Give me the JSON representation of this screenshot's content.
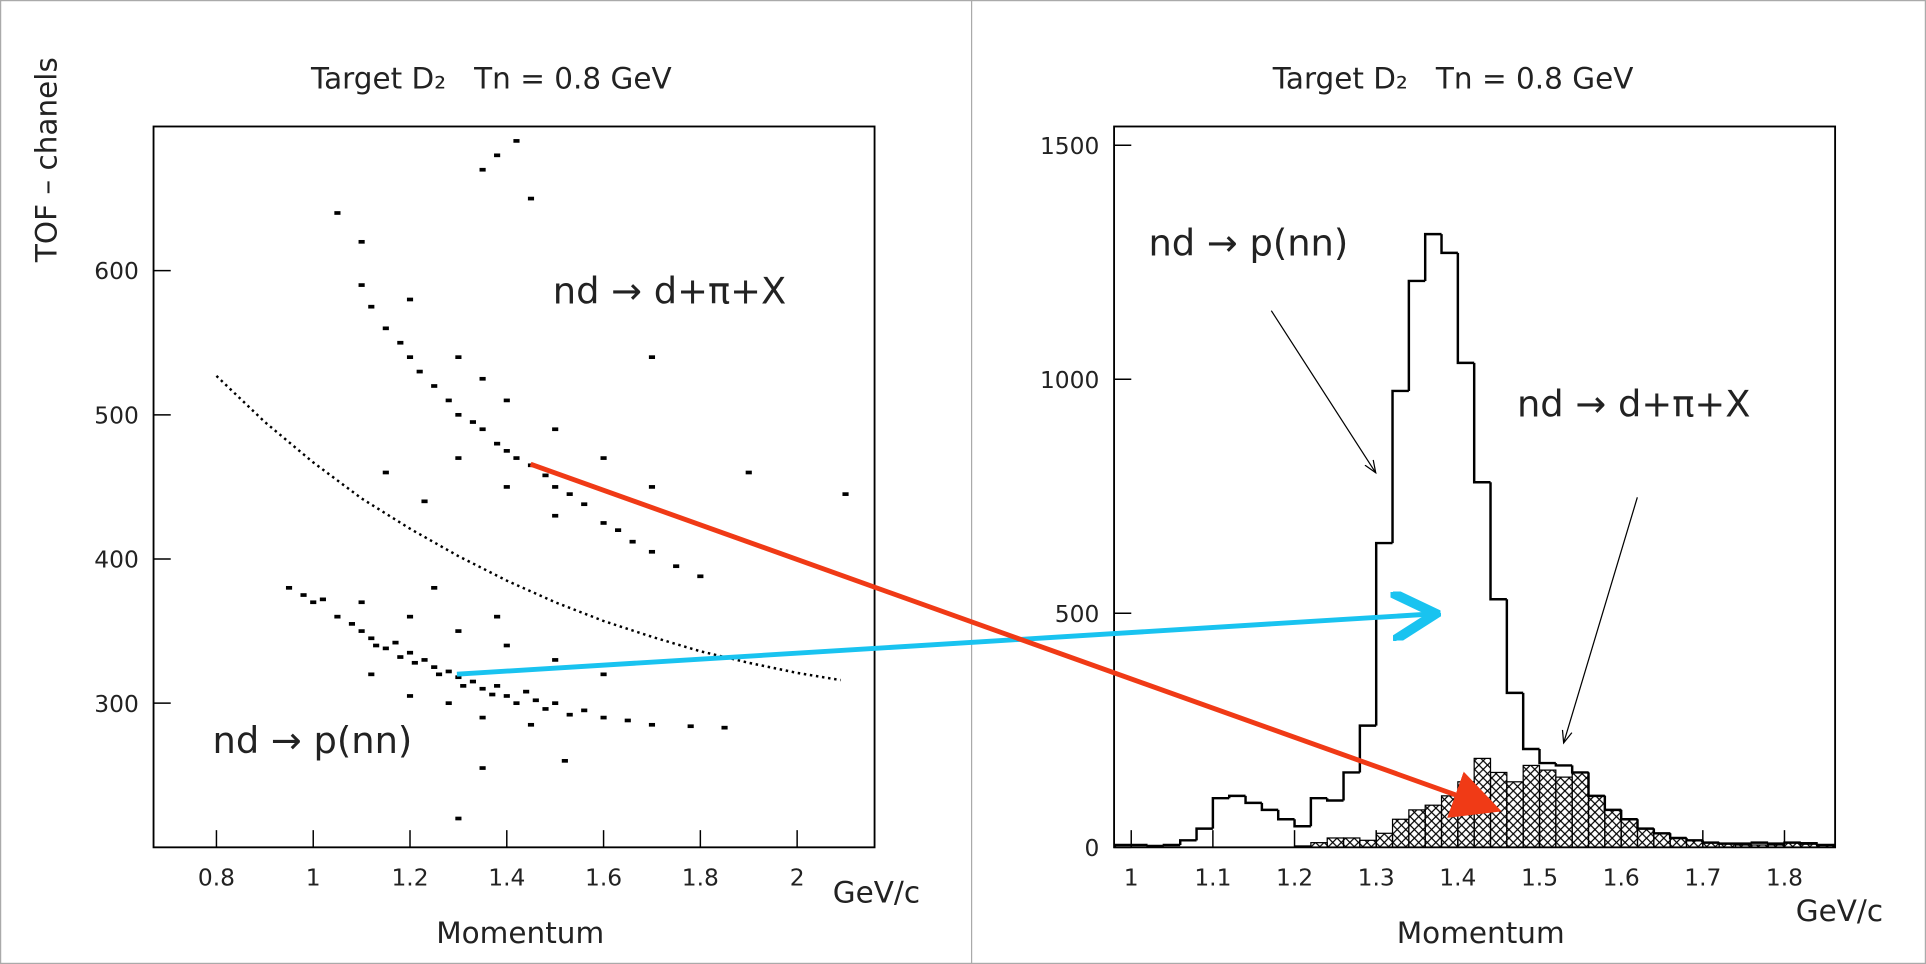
{
  "chart_data": [
    {
      "type": "scatter",
      "title": "Target D₂   Tn = 0.8 GeV",
      "x_label": "Momentum",
      "x_unit": "GeV/c",
      "y_label": "TOF – chanels",
      "xlim": [
        0.67,
        2.16
      ],
      "ylim": [
        200,
        700
      ],
      "xticks": [
        0.8,
        1,
        1.2,
        1.4,
        1.6,
        1.8,
        2
      ],
      "yticks": [
        300,
        400,
        500,
        600
      ],
      "annotations": [
        "nd → d+π+X",
        "nd → p(nn)"
      ],
      "series": [
        {
          "mode": "markers",
          "color": "#000000",
          "x": [
            0.95,
            0.98,
            1.0,
            1.02,
            1.05,
            1.08,
            1.1,
            1.12,
            1.13,
            1.15,
            1.17,
            1.18,
            1.2,
            1.21,
            1.23,
            1.25,
            1.26,
            1.28,
            1.3,
            1.31,
            1.33,
            1.35,
            1.37,
            1.38,
            1.4,
            1.42,
            1.44,
            1.46,
            1.48,
            1.5,
            1.53,
            1.56,
            1.6,
            1.65,
            1.7,
            1.78,
            1.85,
            1.12,
            1.2,
            1.28,
            1.35,
            1.45,
            1.1,
            1.2,
            1.3,
            1.4,
            1.5,
            1.25,
            1.38,
            1.6,
            1.35,
            1.52,
            1.3,
            1.1,
            1.12,
            1.15,
            1.18,
            1.2,
            1.22,
            1.25,
            1.28,
            1.3,
            1.33,
            1.35,
            1.38,
            1.4,
            1.42,
            1.45,
            1.48,
            1.5,
            1.53,
            1.56,
            1.6,
            1.63,
            1.66,
            1.7,
            1.75,
            1.8,
            1.2,
            1.3,
            1.35,
            1.4,
            1.5,
            1.6,
            1.7,
            1.3,
            1.4,
            1.5,
            1.42,
            1.38,
            1.35,
            1.45,
            1.1,
            1.05,
            1.7,
            1.9,
            2.1,
            1.23,
            1.15
          ],
          "y": [
            380,
            375,
            370,
            372,
            360,
            355,
            350,
            345,
            340,
            338,
            342,
            332,
            335,
            328,
            330,
            325,
            320,
            322,
            318,
            312,
            315,
            310,
            306,
            312,
            305,
            300,
            308,
            302,
            296,
            300,
            292,
            295,
            290,
            288,
            285,
            284,
            283,
            320,
            305,
            300,
            290,
            285,
            370,
            360,
            350,
            340,
            330,
            380,
            360,
            320,
            255,
            260,
            220,
            590,
            575,
            560,
            550,
            540,
            530,
            520,
            510,
            500,
            495,
            490,
            480,
            475,
            470,
            465,
            458,
            450,
            445,
            438,
            425,
            420,
            412,
            405,
            395,
            388,
            580,
            540,
            525,
            510,
            490,
            470,
            450,
            470,
            450,
            430,
            690,
            680,
            670,
            650,
            620,
            640,
            540,
            460,
            445,
            440,
            460
          ]
        },
        {
          "mode": "dotted-line",
          "color": "#000000",
          "x": [
            0.8,
            0.9,
            1.0,
            1.1,
            1.2,
            1.3,
            1.4,
            1.5,
            1.6,
            1.7,
            1.8,
            1.9,
            2.0,
            2.09
          ],
          "y": [
            527,
            495,
            467,
            442,
            421,
            402,
            385,
            370,
            357,
            346,
            336,
            328,
            321,
            316
          ]
        }
      ]
    },
    {
      "type": "histogram",
      "title": "Target D₂   Tn = 0.8 GeV",
      "x_label": "Momentum",
      "x_unit": "GeV/c",
      "xlim": [
        0.979,
        1.862
      ],
      "ylim": [
        0,
        1540
      ],
      "xticks": [
        1,
        1.1,
        1.2,
        1.3,
        1.4,
        1.5,
        1.6,
        1.7,
        1.8
      ],
      "yticks": [
        0,
        500,
        1000,
        1500
      ],
      "annotations": [
        "nd → p(nn)",
        "nd → d+π+X"
      ],
      "bins": [
        0.98,
        1,
        1.02,
        1.04,
        1.06,
        1.08,
        1.1,
        1.12,
        1.14,
        1.16,
        1.18,
        1.2,
        1.22,
        1.24,
        1.26,
        1.28,
        1.3,
        1.32,
        1.34,
        1.36,
        1.38,
        1.4,
        1.42,
        1.44,
        1.46,
        1.48,
        1.5,
        1.52,
        1.54,
        1.56,
        1.58,
        1.6,
        1.62,
        1.64,
        1.66,
        1.68,
        1.7,
        1.72,
        1.74,
        1.76,
        1.78,
        1.8,
        1.82,
        1.84,
        1.86
      ],
      "series": [
        {
          "fill": "none",
          "color": "#000000",
          "values": [
            5,
            5,
            3,
            5,
            15,
            40,
            105,
            110,
            95,
            80,
            60,
            45,
            105,
            100,
            160,
            260,
            650,
            975,
            1210,
            1310,
            1270,
            1035,
            780,
            530,
            330,
            210,
            180,
            175,
            160,
            110,
            80,
            60,
            40,
            30,
            20,
            15,
            10,
            8,
            8,
            10,
            8,
            10,
            8,
            5
          ]
        },
        {
          "fill": "hatch",
          "color": "#000000",
          "values": [
            0,
            0,
            0,
            0,
            0,
            0,
            0,
            0,
            0,
            0,
            0,
            3,
            10,
            20,
            20,
            15,
            30,
            60,
            80,
            90,
            110,
            140,
            190,
            160,
            140,
            175,
            165,
            150,
            160,
            110,
            80,
            60,
            40,
            30,
            20,
            15,
            10,
            8,
            5,
            5,
            5,
            10,
            10,
            5
          ]
        }
      ]
    }
  ]
}
